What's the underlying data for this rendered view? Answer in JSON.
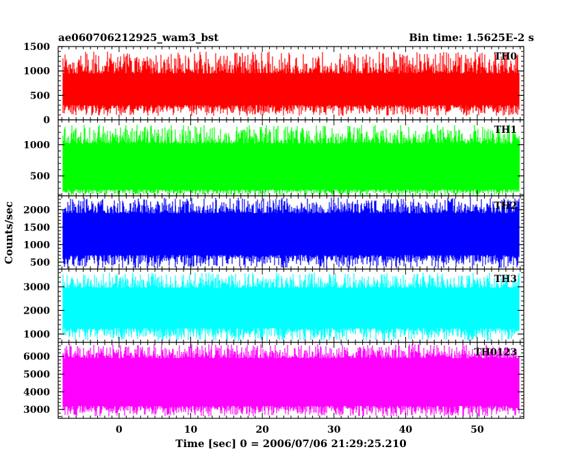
{
  "chart_data": {
    "type": "line",
    "title_left": "ae060706212925_wam3_bst",
    "title_right": "Bin time: 1.5625E-2 s",
    "xlabel": "Time [sec] 0 = 2006/07/06 21:29:25.210",
    "ylabel": "Counts/sec",
    "xlim": [
      -8.5,
      56.5
    ],
    "data_xlim": [
      -7.9,
      55.9
    ],
    "x_ticks": [
      0,
      10,
      20,
      30,
      40,
      50
    ],
    "x_tick_labels": [
      "0",
      "10",
      "20",
      "30",
      "40",
      "50"
    ],
    "grid": false,
    "series": [
      {
        "name": "TH0",
        "color": "#ff0000",
        "ylim": [
          0,
          1500
        ],
        "y_ticks": [
          0,
          500,
          1000,
          1500
        ],
        "y_tick_labels": [
          "0",
          "500",
          "1000",
          "1500"
        ],
        "typical_range": [
          300,
          950
        ],
        "extreme_range": [
          80,
          1400
        ]
      },
      {
        "name": "TH1",
        "color": "#00ff00",
        "ylim": [
          180,
          1400
        ],
        "y_ticks": [
          500,
          1000
        ],
        "y_tick_labels": [
          "500",
          "1000"
        ],
        "typical_range": [
          280,
          1020
        ],
        "extreme_range": [
          190,
          1320
        ]
      },
      {
        "name": "TH2",
        "color": "#0000ff",
        "ylim": [
          300,
          2400
        ],
        "y_ticks": [
          500,
          1000,
          1500,
          2000
        ],
        "y_tick_labels": [
          "500",
          "1000",
          "1500",
          "2000"
        ],
        "typical_range": [
          700,
          1900
        ],
        "extreme_range": [
          320,
          2350
        ]
      },
      {
        "name": "TH3",
        "color": "#00ffff",
        "ylim": [
          650,
          3750
        ],
        "y_ticks": [
          1000,
          2000,
          3000
        ],
        "y_tick_labels": [
          "1000",
          "2000",
          "3000"
        ],
        "typical_range": [
          1250,
          2950
        ],
        "extreme_range": [
          700,
          3600
        ]
      },
      {
        "name": "TH0123",
        "color": "#ff00ff",
        "ylim": [
          2500,
          6800
        ],
        "y_ticks": [
          3000,
          4000,
          5000,
          6000
        ],
        "y_tick_labels": [
          "3000",
          "4000",
          "5000",
          "6000"
        ],
        "typical_range": [
          3200,
          5900
        ],
        "extreme_range": [
          2600,
          6700
        ]
      }
    ]
  }
}
